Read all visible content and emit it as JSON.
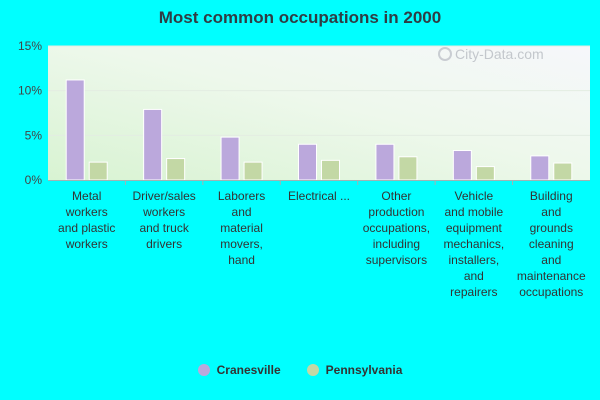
{
  "colors": {
    "background": "#00ffff",
    "series": [
      "#bba8dc",
      "#c3d8a5"
    ]
  },
  "watermark": "City-Data.com",
  "chart_data": {
    "type": "bar",
    "title": "Most common occupations in 2000",
    "xlabel": "",
    "ylabel": "",
    "ylim": [
      0,
      15
    ],
    "yticks": [
      0,
      5,
      10,
      15
    ],
    "ytick_labels": [
      "0%",
      "5%",
      "10%",
      "15%"
    ],
    "grid": true,
    "legend_position": "bottom",
    "categories": [
      "Metal workers and plastic workers",
      "Driver/sales workers and truck drivers",
      "Laborers and material movers, hand",
      "Electrical ...",
      "Other production occupations, including supervisors",
      "Vehicle and mobile equipment mechanics, installers, and repairers",
      "Building and grounds cleaning and maintenance occupations"
    ],
    "category_labels": [
      [
        "Metal",
        "workers",
        "and plastic",
        "workers"
      ],
      [
        "Driver/sales",
        "workers",
        "and truck",
        "drivers"
      ],
      [
        "Laborers",
        "and",
        "material",
        "movers,",
        "hand"
      ],
      [
        "Electrical ..."
      ],
      [
        "Other",
        "production",
        "occupations,",
        "including",
        "supervisors"
      ],
      [
        "Vehicle",
        "and mobile",
        "equipment",
        "mechanics,",
        "installers,",
        "and",
        "repairers"
      ],
      [
        "Building",
        "and",
        "grounds",
        "cleaning",
        "and",
        "maintenance",
        "occupations"
      ]
    ],
    "series": [
      {
        "name": "Cranesville",
        "values": [
          11.2,
          7.9,
          4.8,
          4.0,
          4.0,
          3.3,
          2.7
        ]
      },
      {
        "name": "Pennsylvania",
        "values": [
          2.0,
          2.4,
          2.0,
          2.2,
          2.6,
          1.5,
          1.9
        ]
      }
    ]
  }
}
